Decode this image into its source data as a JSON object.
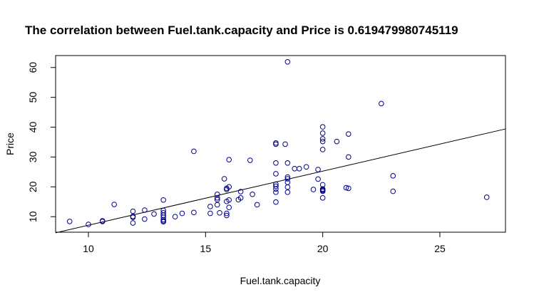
{
  "chart_data": {
    "type": "scatter",
    "title": "The correlation between Fuel.tank.capacity  and  Price  is  0.619479980745119",
    "xlabel": "Fuel.tank.capacity",
    "ylabel": "Price",
    "xlim": [
      8.6,
      27.8
    ],
    "ylim": [
      4.8,
      64
    ],
    "xticks": [
      10,
      15,
      20,
      25
    ],
    "yticks": [
      10,
      20,
      30,
      40,
      50,
      60
    ],
    "grid": false,
    "legend": "none",
    "point_color": "#00008b",
    "line_color": "#000000",
    "regression_line": {
      "x": [
        8.6,
        27.8
      ],
      "y": [
        4.6,
        39.4
      ]
    },
    "points": [
      {
        "x": 9.2,
        "y": 8.4
      },
      {
        "x": 10.0,
        "y": 7.4
      },
      {
        "x": 10.6,
        "y": 8.4
      },
      {
        "x": 10.6,
        "y": 8.6
      },
      {
        "x": 11.1,
        "y": 14.1
      },
      {
        "x": 11.9,
        "y": 7.9
      },
      {
        "x": 11.9,
        "y": 9.8
      },
      {
        "x": 11.9,
        "y": 10.1
      },
      {
        "x": 11.9,
        "y": 11.8
      },
      {
        "x": 12.4,
        "y": 9.2
      },
      {
        "x": 12.4,
        "y": 12.2
      },
      {
        "x": 12.8,
        "y": 10.9
      },
      {
        "x": 13.2,
        "y": 8.3
      },
      {
        "x": 13.2,
        "y": 8.6
      },
      {
        "x": 13.2,
        "y": 9.0
      },
      {
        "x": 13.2,
        "y": 9.8
      },
      {
        "x": 13.2,
        "y": 10.5
      },
      {
        "x": 13.2,
        "y": 11.3
      },
      {
        "x": 13.2,
        "y": 12.1
      },
      {
        "x": 13.2,
        "y": 15.6
      },
      {
        "x": 13.7,
        "y": 10.0
      },
      {
        "x": 14.0,
        "y": 11.1
      },
      {
        "x": 14.5,
        "y": 11.4
      },
      {
        "x": 14.5,
        "y": 31.9
      },
      {
        "x": 15.2,
        "y": 11.1
      },
      {
        "x": 15.2,
        "y": 13.4
      },
      {
        "x": 15.5,
        "y": 14.0
      },
      {
        "x": 15.5,
        "y": 15.7
      },
      {
        "x": 15.5,
        "y": 16.3
      },
      {
        "x": 15.5,
        "y": 17.5
      },
      {
        "x": 15.6,
        "y": 11.3
      },
      {
        "x": 15.8,
        "y": 22.7
      },
      {
        "x": 15.9,
        "y": 10.4
      },
      {
        "x": 15.9,
        "y": 11.1
      },
      {
        "x": 15.9,
        "y": 15.1
      },
      {
        "x": 15.9,
        "y": 19.1
      },
      {
        "x": 15.9,
        "y": 19.5
      },
      {
        "x": 16.0,
        "y": 13.1
      },
      {
        "x": 16.0,
        "y": 15.6
      },
      {
        "x": 16.0,
        "y": 20.0
      },
      {
        "x": 16.0,
        "y": 29.1
      },
      {
        "x": 16.4,
        "y": 15.7
      },
      {
        "x": 16.5,
        "y": 16.3
      },
      {
        "x": 16.5,
        "y": 18.4
      },
      {
        "x": 16.9,
        "y": 28.9
      },
      {
        "x": 17.0,
        "y": 17.5
      },
      {
        "x": 17.2,
        "y": 14.0
      },
      {
        "x": 18.0,
        "y": 14.9
      },
      {
        "x": 18.0,
        "y": 18.2
      },
      {
        "x": 18.0,
        "y": 19.3
      },
      {
        "x": 18.0,
        "y": 20.2
      },
      {
        "x": 18.0,
        "y": 20.9
      },
      {
        "x": 18.0,
        "y": 24.4
      },
      {
        "x": 18.0,
        "y": 28.0
      },
      {
        "x": 18.0,
        "y": 34.3
      },
      {
        "x": 18.0,
        "y": 34.7
      },
      {
        "x": 18.4,
        "y": 34.3
      },
      {
        "x": 18.5,
        "y": 18.2
      },
      {
        "x": 18.5,
        "y": 19.9
      },
      {
        "x": 18.5,
        "y": 21.5
      },
      {
        "x": 18.5,
        "y": 22.7
      },
      {
        "x": 18.5,
        "y": 23.3
      },
      {
        "x": 18.5,
        "y": 28.0
      },
      {
        "x": 18.5,
        "y": 61.9
      },
      {
        "x": 18.8,
        "y": 26.1
      },
      {
        "x": 19.0,
        "y": 26.1
      },
      {
        "x": 19.3,
        "y": 26.7
      },
      {
        "x": 19.6,
        "y": 19.1
      },
      {
        "x": 19.8,
        "y": 22.6
      },
      {
        "x": 19.8,
        "y": 25.8
      },
      {
        "x": 20.0,
        "y": 16.3
      },
      {
        "x": 20.0,
        "y": 18.5
      },
      {
        "x": 20.0,
        "y": 18.8
      },
      {
        "x": 20.0,
        "y": 19.0
      },
      {
        "x": 20.0,
        "y": 19.3
      },
      {
        "x": 20.0,
        "y": 20.7
      },
      {
        "x": 20.0,
        "y": 32.5
      },
      {
        "x": 20.0,
        "y": 35.2
      },
      {
        "x": 20.0,
        "y": 36.1
      },
      {
        "x": 20.0,
        "y": 38.0
      },
      {
        "x": 20.0,
        "y": 40.1
      },
      {
        "x": 20.6,
        "y": 35.2
      },
      {
        "x": 21.0,
        "y": 19.7
      },
      {
        "x": 21.1,
        "y": 19.5
      },
      {
        "x": 21.1,
        "y": 30.0
      },
      {
        "x": 21.1,
        "y": 37.7
      },
      {
        "x": 22.5,
        "y": 47.9
      },
      {
        "x": 23.0,
        "y": 18.5
      },
      {
        "x": 23.0,
        "y": 23.7
      },
      {
        "x": 27.0,
        "y": 16.5
      }
    ]
  }
}
